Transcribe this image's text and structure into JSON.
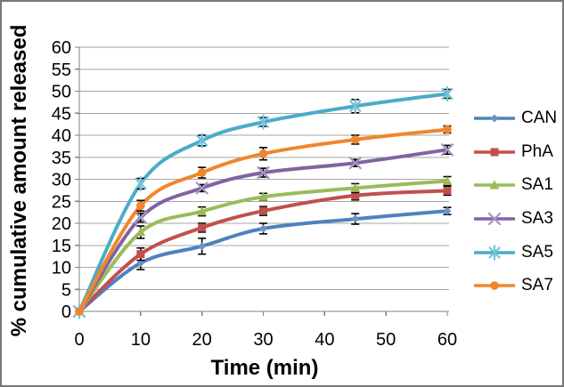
{
  "chart_data": {
    "type": "line",
    "title": "",
    "xlabel": "Time (min)",
    "ylabel": "% cumulative amount released",
    "x": [
      0,
      10,
      20,
      30,
      45,
      60
    ],
    "xticks": [
      0,
      10,
      20,
      30,
      40,
      50,
      60
    ],
    "yticks": [
      0,
      5,
      10,
      15,
      20,
      25,
      30,
      35,
      40,
      45,
      50,
      55,
      60
    ],
    "xlim": [
      0,
      60
    ],
    "ylim": [
      0,
      60
    ],
    "grid": true,
    "smooth": true,
    "error_bars": true,
    "legend_position": "right",
    "colors": {
      "grid": "#A6A6A6",
      "axis": "#808080",
      "error_bar": "#000000",
      "frame_border": "#787878",
      "background": "#FFFFFF",
      "text": "#000000"
    },
    "series": [
      {
        "name": "CAN",
        "marker": "diamond",
        "color": "#4F81BD",
        "marker_color": "#6A94C6",
        "values": [
          0,
          11,
          14.8,
          18.8,
          21,
          22.8
        ],
        "errors": [
          0,
          1.5,
          1.8,
          1.2,
          1.2,
          0.8
        ]
      },
      {
        "name": "PhA",
        "marker": "square",
        "color": "#C0504D",
        "marker_color": "#C0504D",
        "values": [
          0,
          13,
          19,
          22.8,
          26.3,
          27.4
        ],
        "errors": [
          0,
          1.4,
          1.0,
          1.0,
          1.0,
          1.0
        ]
      },
      {
        "name": "SA1",
        "marker": "triangle",
        "color": "#9BBB59",
        "marker_color": "#9BBB59",
        "values": [
          0,
          18,
          22.7,
          26,
          28,
          29.6
        ],
        "errors": [
          0,
          1.4,
          1.0,
          0.8,
          1.0,
          1.0
        ]
      },
      {
        "name": "SA3",
        "marker": "x",
        "color": "#8064A2",
        "marker_color": "#A495C4",
        "values": [
          0,
          21.3,
          28,
          31.5,
          33.7,
          36.7
        ],
        "errors": [
          0,
          1.0,
          0.8,
          1.0,
          0.8,
          1.0
        ]
      },
      {
        "name": "SA5",
        "marker": "asterisk",
        "color": "#4BACC6",
        "marker_color": "#73C3DA",
        "values": [
          0,
          29,
          38.8,
          43,
          46.6,
          49.4
        ],
        "errors": [
          0,
          1.2,
          1.2,
          1.0,
          1.5,
          1.0
        ]
      },
      {
        "name": "SA7",
        "marker": "circle",
        "color": "#F0862B",
        "marker_color": "#F0862B",
        "values": [
          0,
          24,
          31.5,
          35.8,
          39,
          41.3
        ],
        "errors": [
          0,
          1.2,
          1.2,
          1.4,
          1.0,
          0.8
        ]
      }
    ]
  }
}
